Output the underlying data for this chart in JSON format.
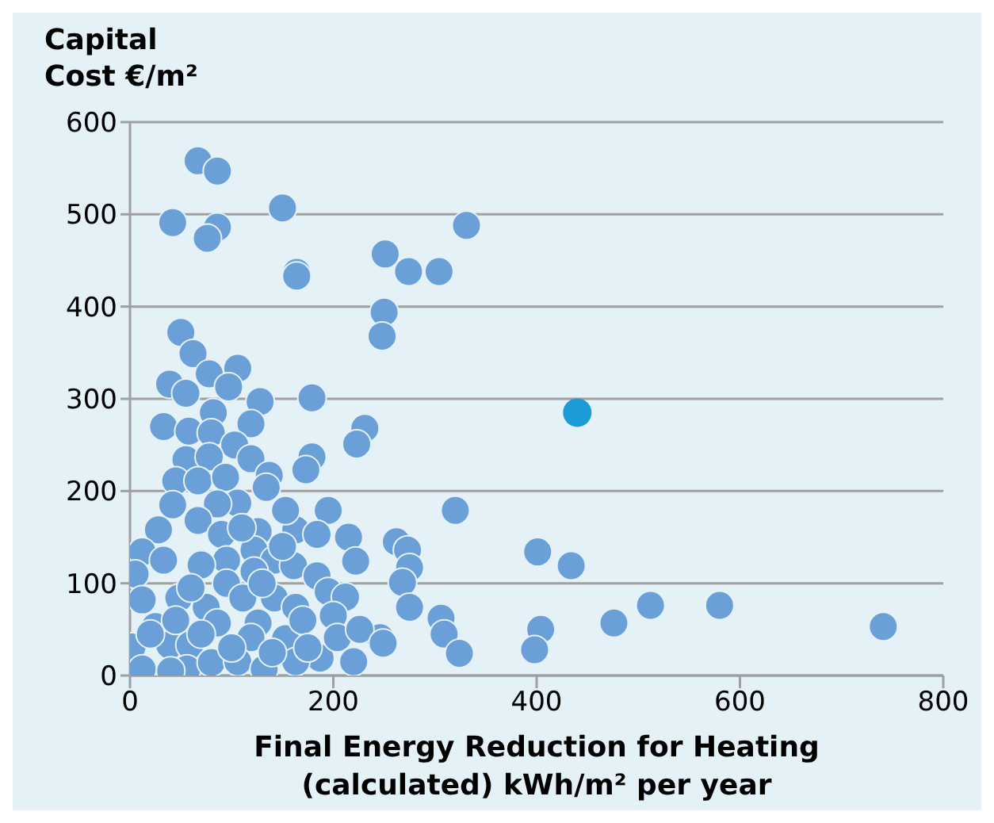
{
  "chart_data": {
    "type": "scatter",
    "xlabel": "Final Energy Reduction for Heating\n(calculated) kWh/m² per year",
    "ylabel": "Capital\nCost €/m²",
    "xlim": [
      0,
      800
    ],
    "xticks": [
      0,
      200,
      400,
      600,
      800
    ],
    "ylim": [
      0,
      600
    ],
    "yticks": [
      0,
      100,
      200,
      300,
      400,
      500,
      600
    ],
    "grid": "y",
    "marker": "circle",
    "series": [
      {
        "color": "#6a9fd8",
        "x": [
          67,
          86,
          42,
          86,
          76,
          150,
          164,
          164,
          251,
          274,
          304,
          331,
          250,
          248,
          231,
          223,
          50,
          62,
          39,
          55,
          78,
          106,
          97,
          128,
          179,
          33,
          58,
          82,
          179,
          173,
          195,
          215,
          222,
          262,
          273,
          275,
          268,
          275,
          320,
          306,
          309,
          324,
          401,
          404,
          398,
          246,
          220,
          187,
          434,
          476,
          512,
          580,
          741,
          119,
          80,
          103,
          55,
          78,
          119,
          45,
          67,
          94,
          137,
          134,
          106,
          42,
          86,
          67,
          28,
          90,
          126,
          163,
          184,
          153,
          122,
          12,
          33,
          95,
          142,
          161,
          5,
          122,
          184,
          95,
          48,
          12,
          195,
          212,
          75,
          111,
          142,
          163,
          200,
          25,
          86,
          126,
          204,
          226,
          2,
          39,
          59,
          119,
          153,
          56,
          80,
          106,
          132,
          163,
          12,
          45,
          70,
          100,
          140,
          170,
          70,
          110,
          150,
          40,
          175,
          60,
          130,
          20,
          249
        ],
        "values": [
          558,
          547,
          491,
          486,
          474,
          507,
          437,
          433,
          457,
          438,
          438,
          488,
          394,
          368,
          268,
          251,
          372,
          349,
          316,
          306,
          327,
          333,
          313,
          297,
          301,
          270,
          265,
          285,
          237,
          223,
          179,
          150,
          124,
          145,
          136,
          117,
          101,
          74,
          179,
          62,
          45,
          24,
          134,
          50,
          28,
          41,
          15,
          19,
          119,
          57,
          76,
          76,
          53,
          273,
          263,
          250,
          234,
          237,
          235,
          211,
          211,
          215,
          217,
          204,
          187,
          185,
          186,
          168,
          158,
          153,
          156,
          158,
          153,
          179,
          136,
          134,
          125,
          125,
          125,
          119,
          110,
          113,
          108,
          100,
          84,
          82,
          91,
          85,
          74,
          84,
          84,
          74,
          65,
          53,
          57,
          57,
          41,
          50,
          31,
          33,
          33,
          41,
          40,
          7,
          14,
          15,
          7,
          15,
          7,
          60,
          45,
          30,
          25,
          60,
          120,
          160,
          140,
          5,
          30,
          95,
          100,
          45,
          35
        ]
      },
      {
        "color": "#1b9bd7",
        "x": [
          440
        ],
        "values": [
          285
        ]
      }
    ]
  }
}
